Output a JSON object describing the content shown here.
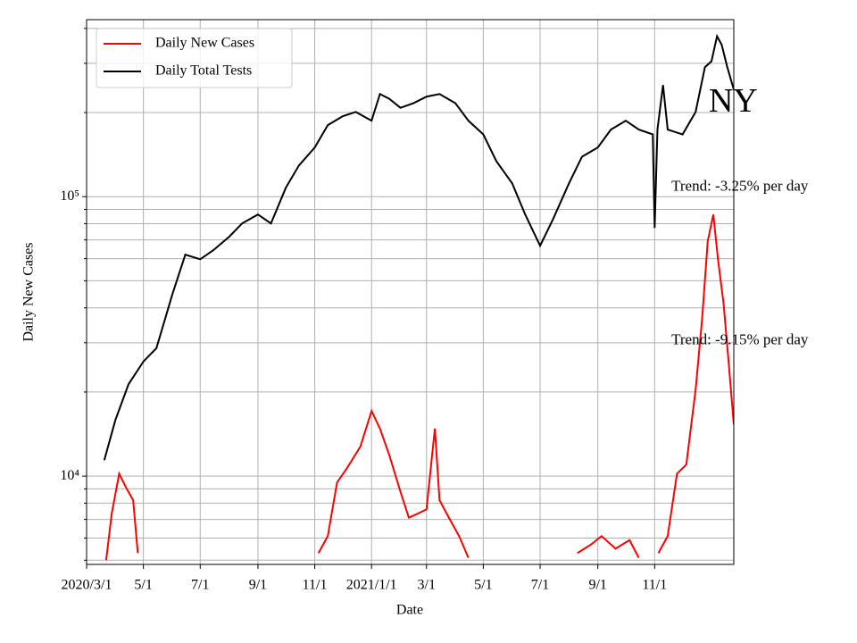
{
  "chart_data": {
    "type": "line",
    "xlabel": "Date",
    "ylabel": "Daily New Cases",
    "yscale": "log",
    "grid": true,
    "legend": "upper left",
    "xlim": [
      "2020-03-01",
      "2022-01-25"
    ],
    "ylim": [
      4830,
      430000
    ],
    "xticks": [
      {
        "value": "2020-03-01",
        "label": "2020/3/1"
      },
      {
        "value": "2020-05-01",
        "label": "5/1"
      },
      {
        "value": "2020-07-01",
        "label": "7/1"
      },
      {
        "value": "2020-09-01",
        "label": "9/1"
      },
      {
        "value": "2020-11-01",
        "label": "11/1"
      },
      {
        "value": "2021-01-01",
        "label": "2021/1/1"
      },
      {
        "value": "2021-03-01",
        "label": "3/1"
      },
      {
        "value": "2021-05-01",
        "label": "5/1"
      },
      {
        "value": "2021-07-01",
        "label": "7/1"
      },
      {
        "value": "2021-09-01",
        "label": "9/1"
      },
      {
        "value": "2021-11-01",
        "label": "11/1"
      }
    ],
    "yticks": [
      {
        "value": 10000,
        "label": "10⁴"
      },
      {
        "value": 100000,
        "label": "10⁵"
      }
    ],
    "minor_yticks": [
      5000,
      6000,
      7000,
      8000,
      9000,
      20000,
      30000,
      40000,
      50000,
      60000,
      70000,
      80000,
      90000,
      200000,
      300000,
      400000
    ],
    "annotations": [
      {
        "text": "NY",
        "x": "2021-12-29",
        "y": 215000
      },
      {
        "text": "Trend: -3.25% per day",
        "x": "2021-11-19",
        "y": 108000
      },
      {
        "text": "Trend: -9.15% per day",
        "x": "2021-11-19",
        "y": 30500
      }
    ],
    "series": [
      {
        "name": "Daily New Cases",
        "color": "#ff0000",
        "x": [
          "2020-03-22",
          "2020-03-28",
          "2020-04-05",
          "2020-04-12",
          "2020-04-20",
          "2020-04-25",
          "2020-06-01",
          "2020-11-05",
          "2020-11-15",
          "2020-11-25",
          "2020-12-05",
          "2020-12-20",
          "2021-01-01",
          "2021-01-10",
          "2021-01-20",
          "2021-02-01",
          "2021-02-10",
          "2021-02-20",
          "2021-03-01",
          "2021-03-10",
          "2021-03-15",
          "2021-03-25",
          "2021-04-05",
          "2021-04-15",
          "2021-06-01",
          "2021-08-10",
          "2021-08-25",
          "2021-09-05",
          "2021-09-20",
          "2021-10-05",
          "2021-10-15",
          "2021-10-25",
          "2021-11-05",
          "2021-11-15",
          "2021-11-25",
          "2021-12-05",
          "2021-12-15",
          "2021-12-22",
          "2021-12-28",
          "2022-01-03",
          "2022-01-08",
          "2022-01-14",
          "2022-01-19",
          "2022-01-25"
        ],
        "values": [
          5000,
          7350,
          10200,
          9150,
          8200,
          5300,
          null,
          5300,
          6100,
          9500,
          10600,
          12750,
          17100,
          14800,
          11900,
          8800,
          7100,
          7350,
          7600,
          14800,
          8200,
          7100,
          6100,
          5100,
          null,
          5300,
          5700,
          6100,
          5500,
          5900,
          5100,
          null,
          5300,
          6100,
          10200,
          11000,
          20400,
          36600,
          69300,
          86300,
          59700,
          41500,
          26600,
          15300
        ]
      },
      {
        "name": "Daily Total Tests",
        "color": "#000000",
        "x": [
          "2020-03-20",
          "2020-04-01",
          "2020-04-15",
          "2020-05-01",
          "2020-05-15",
          "2020-06-01",
          "2020-06-15",
          "2020-07-01",
          "2020-07-15",
          "2020-08-01",
          "2020-08-15",
          "2020-09-01",
          "2020-09-15",
          "2020-10-01",
          "2020-10-15",
          "2020-11-01",
          "2020-11-15",
          "2020-12-01",
          "2020-12-15",
          "2021-01-01",
          "2021-01-10",
          "2021-01-20",
          "2021-02-01",
          "2021-02-15",
          "2021-03-01",
          "2021-03-15",
          "2021-04-01",
          "2021-04-15",
          "2021-05-01",
          "2021-05-15",
          "2021-06-01",
          "2021-06-15",
          "2021-07-01",
          "2021-07-15",
          "2021-08-01",
          "2021-08-15",
          "2021-09-01",
          "2021-09-15",
          "2021-10-01",
          "2021-10-15",
          "2021-10-30",
          "2021-11-01",
          "2021-11-04",
          "2021-11-10",
          "2021-11-15",
          "2021-12-01",
          "2021-12-15",
          "2021-12-25",
          "2022-01-01",
          "2022-01-07",
          "2022-01-12",
          "2022-01-18",
          "2022-01-25"
        ],
        "values": [
          11400,
          15900,
          21300,
          25700,
          28700,
          44600,
          62000,
          59700,
          64300,
          71800,
          80200,
          86300,
          80200,
          107700,
          129300,
          150000,
          180300,
          194000,
          201000,
          187000,
          233000,
          224000,
          208000,
          216000,
          228000,
          233000,
          216000,
          187000,
          167000,
          134000,
          111600,
          86300,
          66700,
          83200,
          111600,
          139000,
          150000,
          173800,
          187000,
          173800,
          167000,
          77300,
          173800,
          250800,
          173800,
          167000,
          201000,
          290700,
          305000,
          375000,
          349600,
          290700,
          241600
        ]
      }
    ]
  }
}
